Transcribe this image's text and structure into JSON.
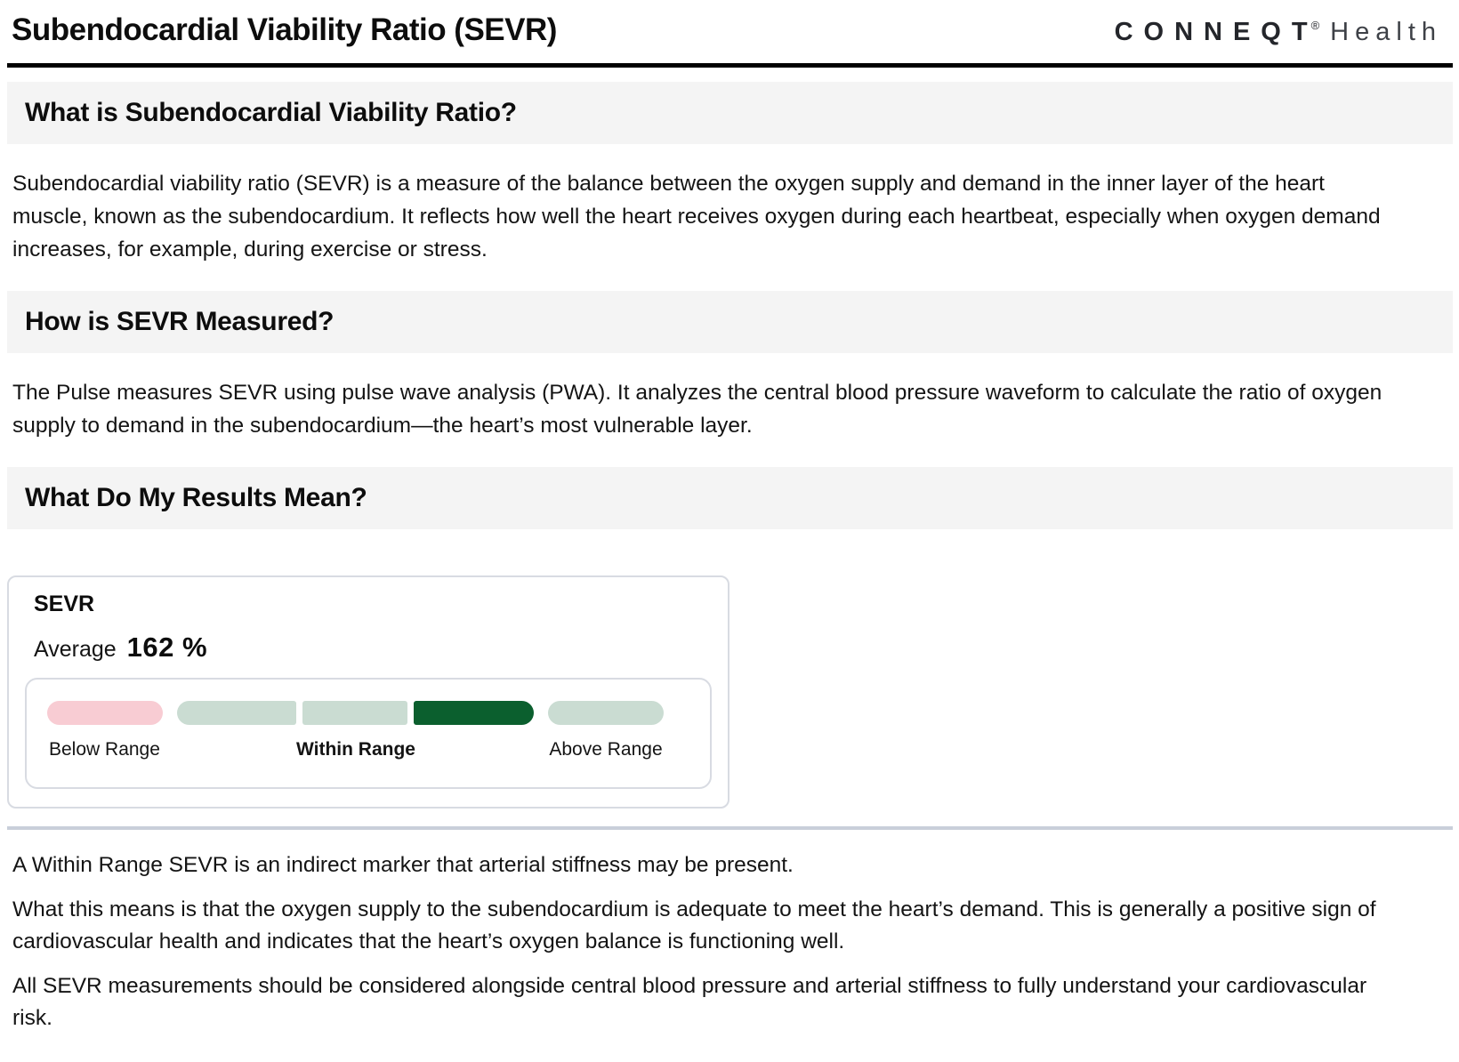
{
  "header": {
    "title": "Subendocardial Viability Ratio (SEVR)",
    "logo": {
      "brand": "CONNEQT",
      "registered": "®",
      "suffix": "Health"
    }
  },
  "sections": [
    {
      "heading": "What is Subendocardial Viability Ratio?",
      "body": "Subendocardial viability ratio (SEVR) is a measure of the balance between the oxygen supply and demand in the inner layer of the heart muscle, known as the subendocardium. It reflects how well the heart receives oxygen during each heartbeat, especially when oxygen demand increases, for example, during exercise or stress."
    },
    {
      "heading": "How is SEVR Measured?",
      "body": "The Pulse measures SEVR using pulse wave analysis (PWA). It analyzes the central blood pressure waveform to calculate the ratio of oxygen supply to demand in the subendocardium—the heart’s most vulnerable layer."
    },
    {
      "heading": "What Do My Results Mean?"
    }
  ],
  "result_card": {
    "metric": "SEVR",
    "average_label": "Average",
    "average_value": "162 %",
    "range_labels": {
      "below": "Below Range",
      "within": "Within Range",
      "above": "Above Range"
    },
    "segments": [
      {
        "zone": "below-range",
        "color": "#f8ccd3",
        "active": false
      },
      {
        "zone": "within-range",
        "color": "#cadcd2",
        "active": false
      },
      {
        "zone": "within-range",
        "color": "#cadcd2",
        "active": false
      },
      {
        "zone": "within-range",
        "color": "#0b5f2e",
        "active": true
      },
      {
        "zone": "above-range",
        "color": "#cadcd2",
        "active": false
      }
    ],
    "active_segment_index": 3
  },
  "interpretation": {
    "paragraphs": [
      "A Within Range SEVR is an indirect marker that arterial stiffness may be present.",
      "What this means is that the oxygen supply to the subendocardium is adequate to meet the heart’s demand. This is generally a positive sign of cardiovascular health and indicates that the heart’s oxygen balance is functioning well.",
      "All SEVR measurements should be considered alongside central blood pressure and arterial stiffness to fully understand your cardiovascular risk."
    ]
  },
  "colors": {
    "heading_bar_bg": "#f4f4f4",
    "top_rule": "#000000",
    "card_border": "#d8dbe2",
    "bottom_divider": "#c9cfda",
    "below_range_pink": "#f8ccd3",
    "range_muted_green": "#cadcd2",
    "active_dark_green": "#0b5f2e"
  }
}
